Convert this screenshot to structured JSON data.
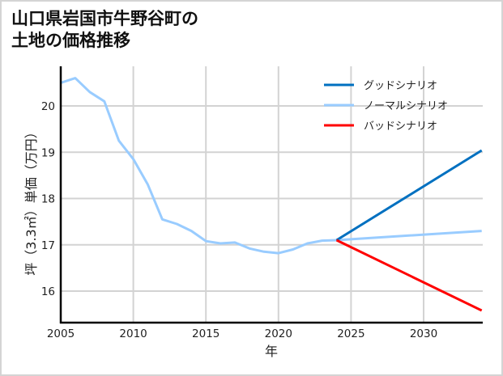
{
  "title": {
    "line1": "山口県岩国市牛野谷町の",
    "line2": "土地の価格推移"
  },
  "chart_data": {
    "type": "line",
    "title": "山口県岩国市牛野谷町の土地の価格推移",
    "xlabel": "年",
    "ylabel": "坪（3.3㎡）単価（万円）",
    "xlim": [
      2005,
      2034
    ],
    "ylim": [
      15.35,
      20.9
    ],
    "xticks": [
      2005,
      2010,
      2015,
      2020,
      2025,
      2030
    ],
    "yticks": [
      16,
      17,
      18,
      19,
      20
    ],
    "grid": true,
    "legend_position": "upper right",
    "series": [
      {
        "name": "グッドシナリオ",
        "color": "#0070C0",
        "x": [
          2024,
          2034
        ],
        "values": [
          17.1,
          19.04
        ]
      },
      {
        "name": "ノーマルシナリオ",
        "color": "#99CCFF",
        "x": [
          2005,
          2006,
          2007,
          2008,
          2009,
          2010,
          2011,
          2012,
          2013,
          2014,
          2015,
          2016,
          2017,
          2018,
          2019,
          2020,
          2021,
          2022,
          2023,
          2024,
          2034
        ],
        "values": [
          20.5,
          20.6,
          20.3,
          20.1,
          19.25,
          18.85,
          18.3,
          17.55,
          17.45,
          17.3,
          17.08,
          17.03,
          17.05,
          16.92,
          16.85,
          16.82,
          16.9,
          17.03,
          17.09,
          17.1,
          17.3
        ]
      },
      {
        "name": "バッドシナリオ",
        "color": "#FF0000",
        "x": [
          2024,
          2034
        ],
        "values": [
          17.1,
          15.58
        ]
      }
    ]
  }
}
